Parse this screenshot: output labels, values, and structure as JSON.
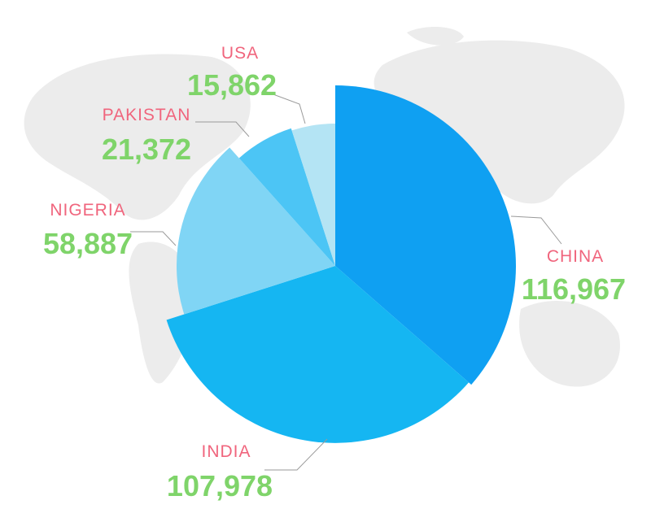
{
  "chart_data": {
    "type": "pie",
    "categories": [
      "CHINA",
      "INDIA",
      "NIGERIA",
      "PAKISTAN",
      "USA"
    ],
    "values": [
      116967,
      107978,
      58887,
      21372,
      15862
    ],
    "value_labels": [
      "116,967",
      "107,978",
      "58,887",
      "21,372",
      "15,862"
    ],
    "colors": [
      "#0fa0f2",
      "#15b6f2",
      "#80d5f5",
      "#4cc5f5",
      "#b4e4f4"
    ]
  }
}
